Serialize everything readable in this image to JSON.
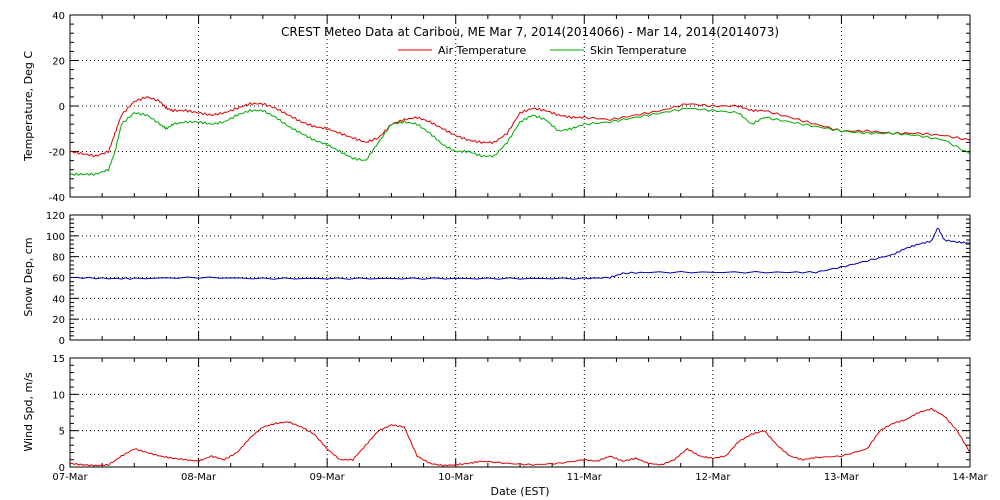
{
  "title": "CREST Meteo Data at Caribou, ME   Mar  7, 2014(2014066) - Mar 14, 2014(2014073)",
  "xlabel": "Date (EST)",
  "x_ticks": [
    "07-Mar",
    "08-Mar",
    "09-Mar",
    "10-Mar",
    "11-Mar",
    "12-Mar",
    "13-Mar",
    "14-Mar"
  ],
  "colors": {
    "air": "#dd0000",
    "skin": "#00aa00",
    "snow": "#0000aa",
    "wind": "#dd0000"
  },
  "chart_data": [
    {
      "type": "line",
      "ylabel": "Temperature, Deg C",
      "ylim": [
        -40,
        40
      ],
      "y_ticks": [
        40,
        20,
        0,
        -20,
        -40
      ],
      "xlim": [
        0,
        7
      ],
      "grid": "dotted",
      "legend": "top-center",
      "series": [
        {
          "name": "Air Temperature",
          "color": "#dd0000",
          "x": [
            0,
            0.1,
            0.2,
            0.3,
            0.35,
            0.4,
            0.5,
            0.6,
            0.7,
            0.75,
            0.8,
            0.9,
            1.0,
            1.1,
            1.2,
            1.3,
            1.4,
            1.5,
            1.6,
            1.7,
            1.8,
            1.9,
            2.0,
            2.1,
            2.2,
            2.3,
            2.4,
            2.5,
            2.6,
            2.7,
            2.8,
            2.9,
            3.0,
            3.1,
            3.2,
            3.3,
            3.4,
            3.5,
            3.6,
            3.7,
            3.8,
            3.9,
            4.0,
            4.2,
            4.4,
            4.6,
            4.8,
            5.0,
            5.2,
            5.3,
            5.4,
            5.6,
            5.8,
            6.0,
            6.2,
            6.4,
            6.6,
            6.8,
            7.0
          ],
          "values": [
            -20,
            -21,
            -22,
            -20,
            -12,
            -4,
            2,
            4,
            2,
            -1,
            -2,
            -2,
            -3,
            -4,
            -3,
            -1,
            1,
            1,
            -1,
            -4,
            -7,
            -9,
            -10,
            -12,
            -14,
            -16,
            -14,
            -8,
            -6,
            -5,
            -7,
            -10,
            -13,
            -15,
            -16,
            -16,
            -12,
            -3,
            -1,
            -2,
            -4,
            -5,
            -5,
            -6,
            -4,
            -2,
            1,
            0,
            0,
            -2,
            -2,
            -5,
            -8,
            -11,
            -11,
            -12,
            -12,
            -13,
            -15
          ]
        },
        {
          "name": "Skin Temperature",
          "color": "#00aa00",
          "x": [
            0,
            0.1,
            0.2,
            0.3,
            0.35,
            0.4,
            0.5,
            0.6,
            0.7,
            0.75,
            0.8,
            0.9,
            1.0,
            1.1,
            1.2,
            1.3,
            1.4,
            1.5,
            1.6,
            1.7,
            1.8,
            1.9,
            2.0,
            2.1,
            2.2,
            2.3,
            2.4,
            2.5,
            2.6,
            2.7,
            2.8,
            2.9,
            3.0,
            3.1,
            3.2,
            3.3,
            3.4,
            3.5,
            3.6,
            3.7,
            3.8,
            3.9,
            4.0,
            4.2,
            4.4,
            4.6,
            4.8,
            5.0,
            5.2,
            5.3,
            5.4,
            5.6,
            5.8,
            6.0,
            6.2,
            6.4,
            6.6,
            6.8,
            7.0
          ],
          "values": [
            -30,
            -30,
            -30,
            -28,
            -20,
            -8,
            -3,
            -4,
            -8,
            -10,
            -8,
            -7,
            -7,
            -8,
            -7,
            -4,
            -2,
            -2,
            -5,
            -9,
            -12,
            -15,
            -17,
            -20,
            -23,
            -24,
            -16,
            -8,
            -7,
            -8,
            -12,
            -17,
            -20,
            -20,
            -22,
            -22,
            -16,
            -7,
            -4,
            -6,
            -11,
            -10,
            -8,
            -7,
            -5,
            -3,
            -1,
            -2,
            -3,
            -8,
            -5,
            -7,
            -9,
            -11,
            -12,
            -12,
            -13,
            -15,
            -21
          ]
        }
      ]
    },
    {
      "type": "line",
      "ylabel": "Snow Dep, cm",
      "ylim": [
        0,
        120
      ],
      "y_ticks": [
        120,
        100,
        80,
        60,
        40,
        20,
        0
      ],
      "xlim": [
        0,
        7
      ],
      "grid": "dotted",
      "series": [
        {
          "name": "",
          "color": "#0000aa",
          "x": [
            0,
            0.3,
            0.5,
            1.0,
            1.5,
            2.0,
            2.5,
            3.0,
            3.5,
            4.0,
            4.2,
            4.3,
            4.5,
            5.0,
            5.5,
            5.8,
            6.0,
            6.2,
            6.4,
            6.5,
            6.6,
            6.7,
            6.75,
            6.8,
            6.9,
            7.0
          ],
          "values": [
            60,
            59,
            59,
            60,
            59,
            59,
            59,
            59,
            59,
            59,
            60,
            64,
            65,
            65,
            65,
            65,
            70,
            76,
            82,
            88,
            92,
            95,
            108,
            96,
            94,
            93
          ]
        }
      ]
    },
    {
      "type": "line",
      "ylabel": "Wind Spd, m/s",
      "ylim": [
        0,
        15
      ],
      "y_ticks": [
        15,
        10,
        5,
        0
      ],
      "xlim": [
        0,
        7
      ],
      "grid": "dotted",
      "series": [
        {
          "name": "",
          "color": "#dd0000",
          "x": [
            0,
            0.1,
            0.2,
            0.3,
            0.4,
            0.5,
            0.6,
            0.7,
            0.8,
            0.9,
            1.0,
            1.1,
            1.2,
            1.3,
            1.4,
            1.5,
            1.6,
            1.7,
            1.8,
            1.9,
            2.0,
            2.1,
            2.2,
            2.3,
            2.4,
            2.5,
            2.6,
            2.7,
            2.8,
            2.9,
            3.0,
            3.1,
            3.2,
            3.4,
            3.6,
            3.8,
            4.0,
            4.1,
            4.2,
            4.3,
            4.4,
            4.5,
            4.6,
            4.7,
            4.8,
            4.9,
            5.0,
            5.1,
            5.2,
            5.3,
            5.4,
            5.5,
            5.6,
            5.7,
            5.8,
            6.0,
            6.2,
            6.3,
            6.4,
            6.5,
            6.6,
            6.7,
            6.8,
            6.9,
            7.0
          ],
          "values": [
            0.5,
            0.3,
            0.2,
            0.3,
            1.5,
            2.5,
            2.0,
            1.5,
            1.2,
            1.0,
            0.8,
            1.5,
            1.0,
            2.0,
            4.0,
            5.5,
            6.0,
            6.2,
            5.5,
            4.5,
            2.5,
            1.0,
            1.0,
            3.0,
            5.0,
            5.8,
            5.5,
            1.5,
            0.5,
            0.2,
            0.3,
            0.5,
            0.8,
            0.5,
            0.3,
            0.5,
            1.0,
            0.8,
            1.5,
            0.8,
            1.2,
            0.5,
            0.3,
            1.0,
            2.5,
            1.5,
            1.2,
            1.5,
            3.5,
            4.5,
            5.0,
            3.0,
            1.5,
            1.0,
            1.3,
            1.5,
            2.5,
            5.0,
            6.0,
            6.5,
            7.5,
            8.0,
            7.0,
            5.0,
            2.0
          ]
        }
      ]
    }
  ]
}
